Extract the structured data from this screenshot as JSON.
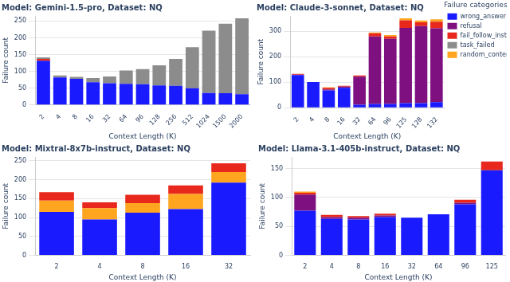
{
  "chart_data": [
    {
      "type": "bar",
      "stacked": true,
      "grid": true,
      "title": "Model: Gemini-1.5-pro, Dataset: NQ",
      "x_label": "Context Length (K)",
      "y_label": "Failure count",
      "categories": [
        "2",
        "4",
        "8",
        "16",
        "32",
        "64",
        "96",
        "128",
        "256",
        "512",
        "1024",
        "1500",
        "2000"
      ],
      "ylim": [
        0,
        265
      ],
      "yticks": [
        0,
        50,
        100,
        150,
        200,
        250
      ],
      "series": [
        {
          "name": "wrong_answer",
          "color": "#1a1aff",
          "values": [
            132,
            82,
            78,
            68,
            65,
            63,
            62,
            58,
            57,
            50,
            36,
            35,
            32
          ]
        },
        {
          "name": "fail_follow_inst",
          "color": "#e8281c",
          "values": [
            5,
            0,
            0,
            0,
            0,
            0,
            0,
            0,
            0,
            0,
            0,
            0,
            0
          ]
        },
        {
          "name": "task_failed",
          "color": "#8c8c8c",
          "values": [
            5,
            6,
            6,
            12,
            20,
            40,
            45,
            60,
            80,
            122,
            185,
            207,
            226
          ]
        }
      ]
    },
    {
      "type": "bar",
      "stacked": true,
      "grid": true,
      "legend": "right",
      "legend_title": "Failure categories",
      "title": "Model: Claude-3-sonnet, Dataset: NQ",
      "x_label": "Context Length (K)",
      "y_label": "Failure count",
      "categories": [
        "2",
        "4",
        "8",
        "16",
        "32",
        "64",
        "96",
        "125",
        "128",
        "132"
      ],
      "ylim": [
        0,
        360
      ],
      "yticks": [
        0,
        100,
        200,
        300
      ],
      "series": [
        {
          "name": "wrong_answer",
          "color": "#1a1aff",
          "values": [
            128,
            101,
            68,
            78,
            12,
            15,
            15,
            18,
            18,
            22
          ]
        },
        {
          "name": "refusal",
          "color": "#7e1080",
          "values": [
            2,
            0,
            4,
            5,
            110,
            265,
            255,
            295,
            302,
            290
          ]
        },
        {
          "name": "fail_follow_inst",
          "color": "#e8281c",
          "values": [
            3,
            0,
            6,
            3,
            5,
            12,
            10,
            30,
            15,
            25
          ]
        },
        {
          "name": "task_failed",
          "color": "#8c8c8c",
          "values": [
            0,
            0,
            0,
            0,
            0,
            0,
            0,
            0,
            0,
            0
          ]
        },
        {
          "name": "random_content",
          "color": "#ffa51f",
          "values": [
            0,
            0,
            3,
            0,
            0,
            3,
            5,
            8,
            7,
            10
          ]
        }
      ]
    },
    {
      "type": "bar",
      "stacked": true,
      "grid": true,
      "title": "Model: Mixtral-8x7b-instruct, Dataset: NQ",
      "x_label": "Context Length (K)",
      "y_label": "Failure count",
      "categories": [
        "2",
        "4",
        "8",
        "16",
        "32"
      ],
      "ylim": [
        0,
        260
      ],
      "yticks": [
        0,
        50,
        100,
        150,
        200,
        250
      ],
      "series": [
        {
          "name": "wrong_answer",
          "color": "#1a1aff",
          "values": [
            115,
            95,
            113,
            122,
            192
          ]
        },
        {
          "name": "random_content",
          "color": "#ffa51f",
          "values": [
            30,
            30,
            25,
            40,
            28
          ]
        },
        {
          "name": "fail_follow_inst",
          "color": "#e8281c",
          "values": [
            22,
            15,
            22,
            23,
            23
          ]
        }
      ]
    },
    {
      "type": "bar",
      "stacked": true,
      "grid": true,
      "title": "Model: Llama-3.1-405b-instruct, Dataset: NQ",
      "x_label": "Context Length (K)",
      "y_label": "Failure count",
      "categories": [
        "2",
        "4",
        "8",
        "16",
        "32",
        "64",
        "96",
        "125"
      ],
      "ylim": [
        0,
        170
      ],
      "yticks": [
        0,
        50,
        100,
        150
      ],
      "series": [
        {
          "name": "wrong_answer",
          "color": "#1a1aff",
          "values": [
            77,
            63,
            62,
            66,
            65,
            71,
            88,
            147
          ]
        },
        {
          "name": "refusal",
          "color": "#7e1080",
          "values": [
            28,
            3,
            3,
            3,
            0,
            0,
            3,
            0
          ]
        },
        {
          "name": "fail_follow_inst",
          "color": "#e8281c",
          "values": [
            3,
            4,
            3,
            3,
            0,
            0,
            5,
            15
          ]
        },
        {
          "name": "random_content",
          "color": "#ffa51f",
          "values": [
            2,
            0,
            0,
            0,
            0,
            0,
            0,
            0
          ]
        }
      ]
    }
  ]
}
